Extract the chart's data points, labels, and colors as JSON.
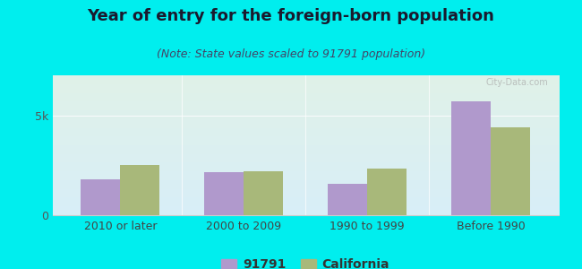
{
  "title": "Year of entry for the foreign-born population",
  "subtitle": "(Note: State values scaled to 91791 population)",
  "categories": [
    "2010 or later",
    "2000 to 2009",
    "1990 to 1999",
    "Before 1990"
  ],
  "values_91791": [
    1800,
    2150,
    1550,
    5700
  ],
  "values_california": [
    2500,
    2200,
    2350,
    4400
  ],
  "color_91791": "#b099cc",
  "color_california": "#a8b87a",
  "background_outer": "#00eeee",
  "ylim": [
    0,
    7000
  ],
  "ytick_label": "5k",
  "ytick_value": 5000,
  "bar_width": 0.32,
  "legend_label_1": "91791",
  "legend_label_2": "California",
  "title_fontsize": 13,
  "subtitle_fontsize": 9,
  "axis_fontsize": 9,
  "legend_fontsize": 10,
  "watermark_text": "City-Data.com",
  "grad_top": "#e0f2e8",
  "grad_bottom": "#d8eef8"
}
